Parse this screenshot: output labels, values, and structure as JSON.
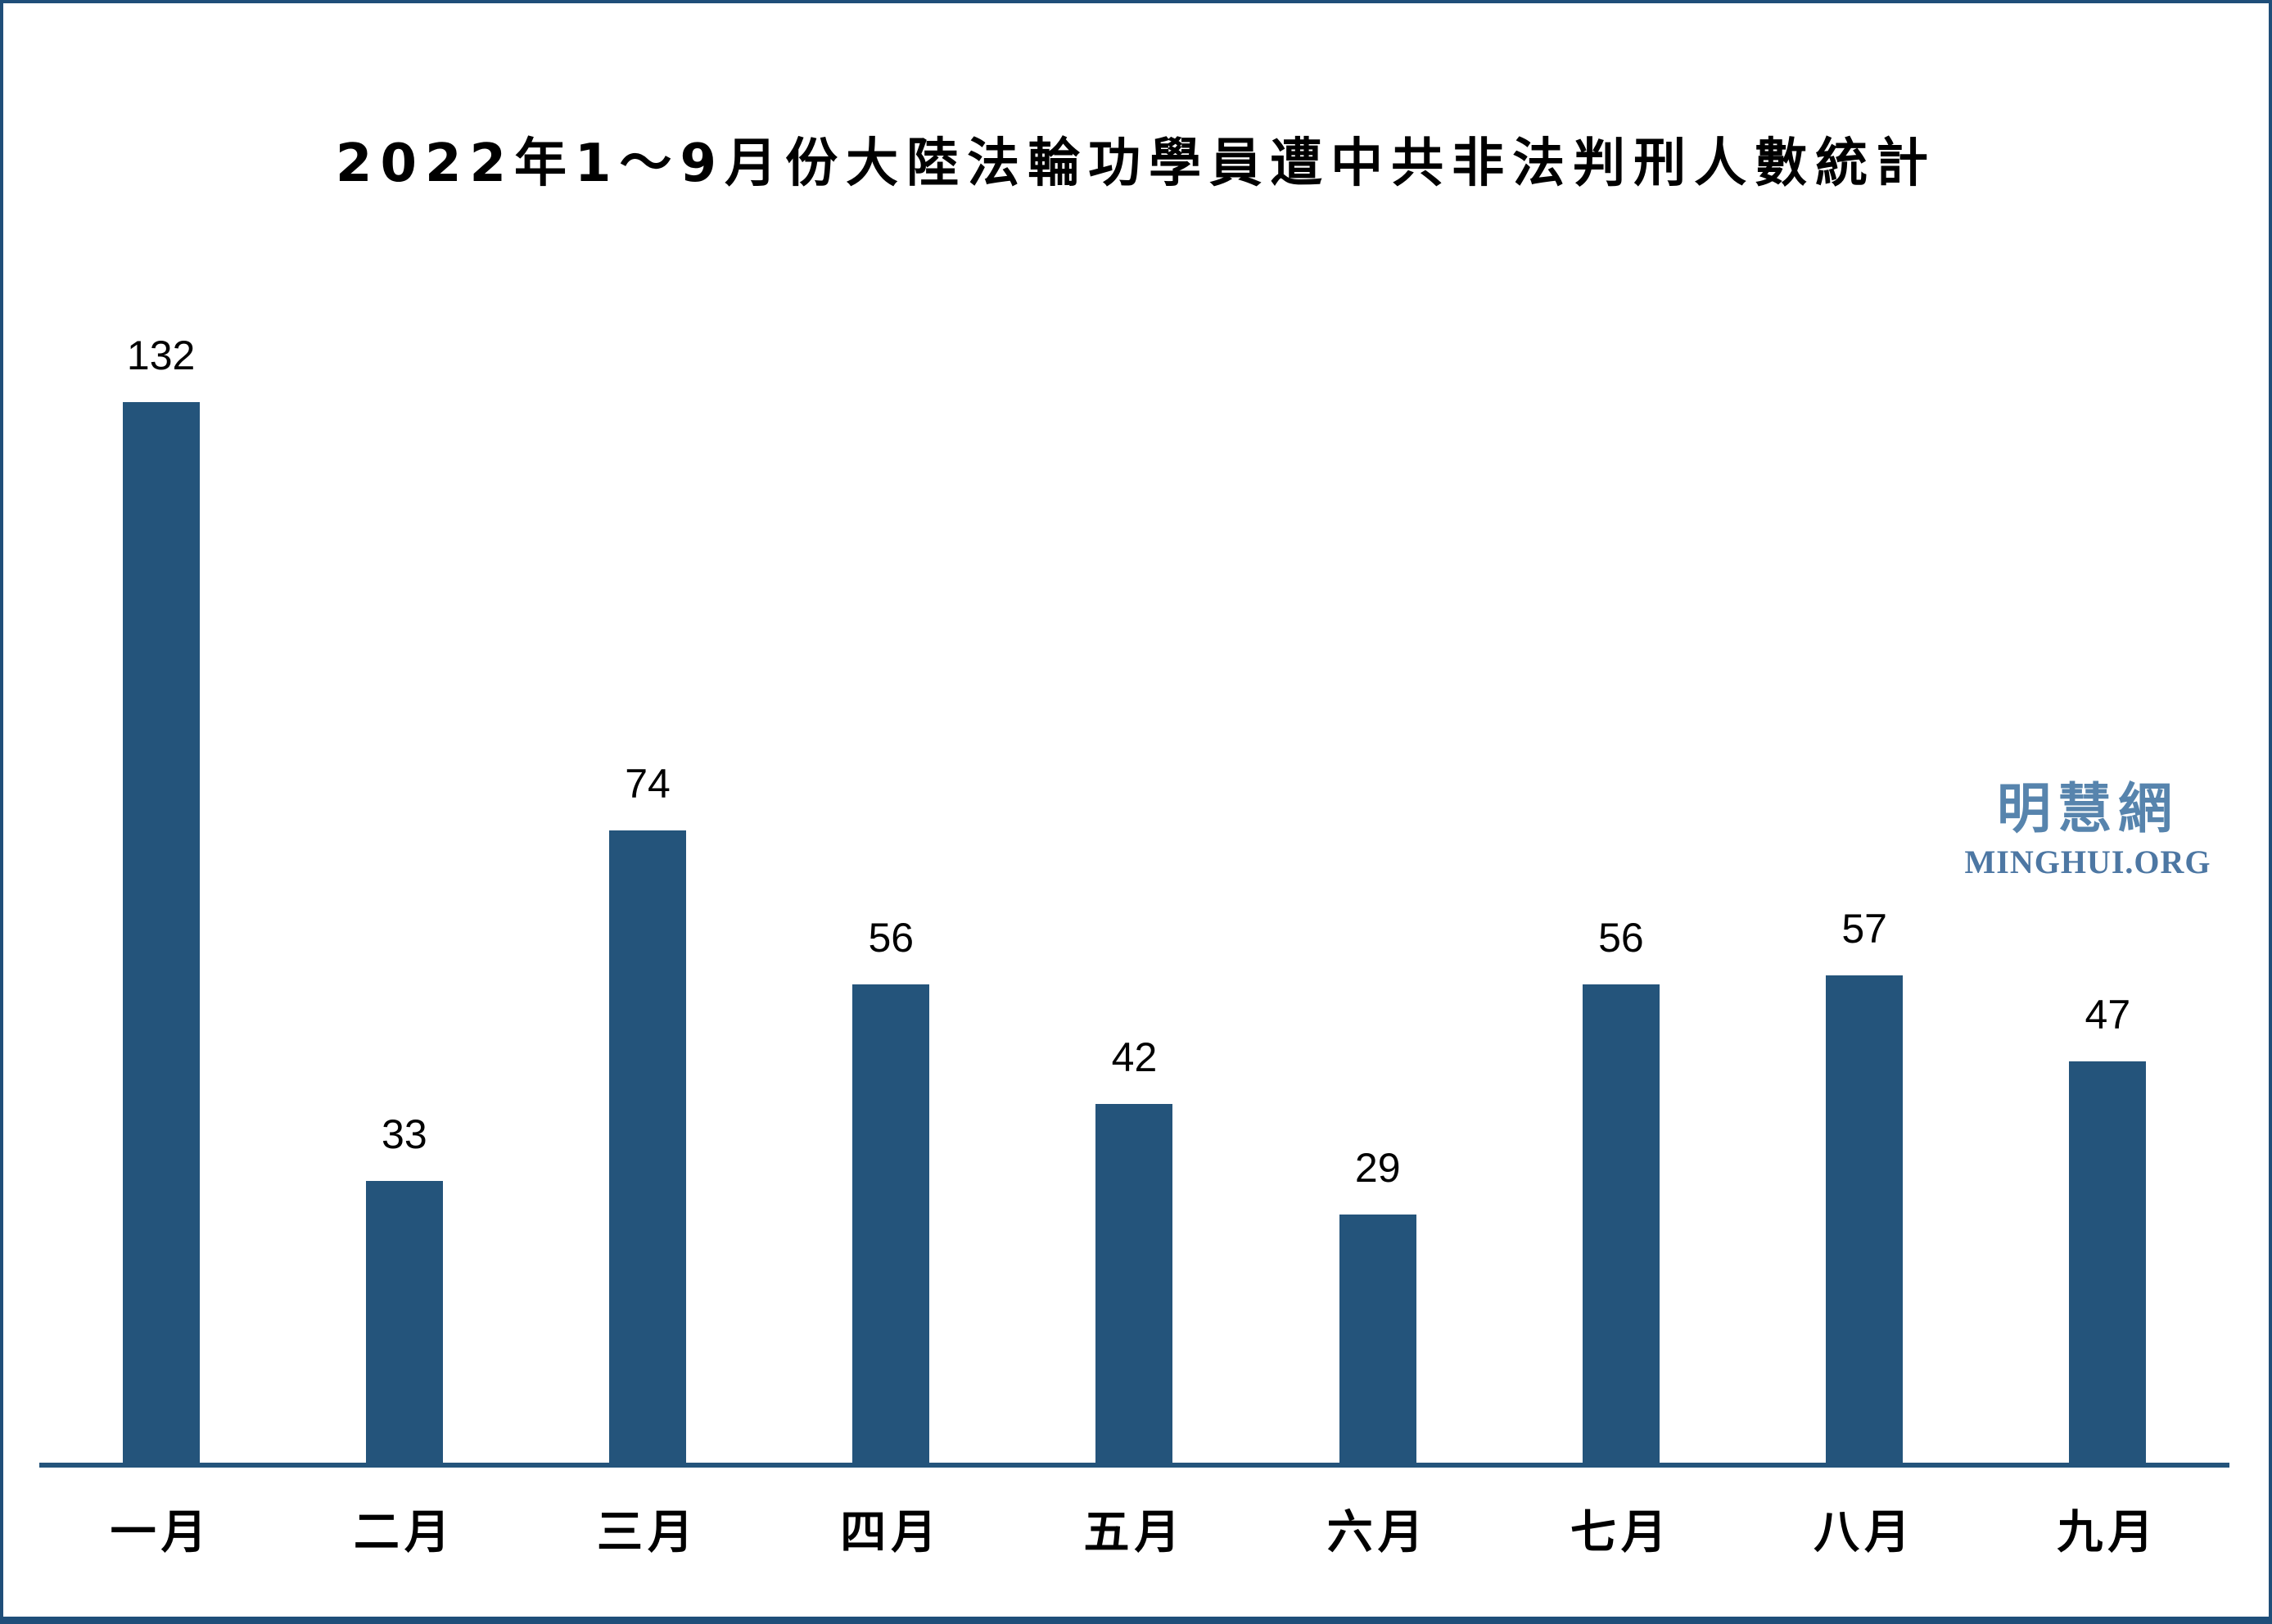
{
  "title": "2022年1～9月份大陸法輪功學員遭中共非法判刑人數統計",
  "watermark": {
    "cn": "明慧網",
    "en": "MINGHUI.ORG"
  },
  "colors": {
    "bar": "#24547b",
    "axis": "#24547b",
    "frame": "#1f4e79",
    "watermark_cn": "#5784ad",
    "watermark_en": "#4d77a3"
  },
  "chart_data": {
    "type": "bar",
    "title": "2022年1～9月份大陸法輪功學員遭中共非法判刑人數統計",
    "categories": [
      "一月",
      "二月",
      "三月",
      "四月",
      "五月",
      "六月",
      "七月",
      "八月",
      "九月"
    ],
    "values": [
      132,
      33,
      74,
      56,
      42,
      29,
      56,
      57,
      47
    ],
    "xlabel": "",
    "ylabel": "",
    "ylim": [
      0,
      132
    ],
    "grid": false,
    "legend": "none",
    "value_labels": true,
    "bar_color": "#24547b"
  }
}
